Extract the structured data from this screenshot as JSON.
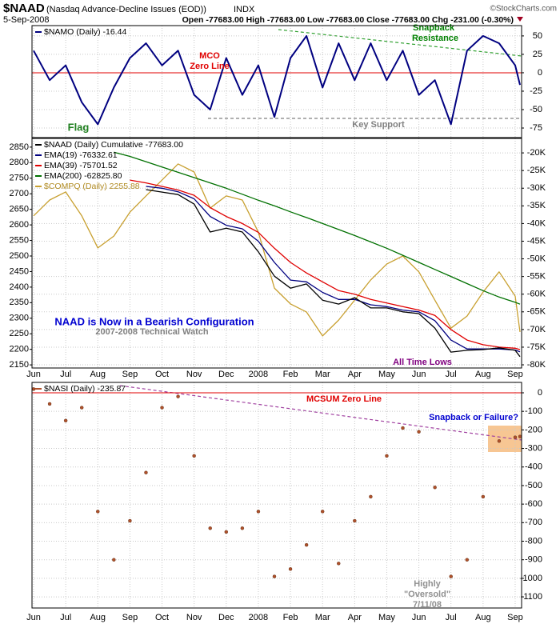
{
  "header": {
    "symbol": "$NAAD",
    "description": "(Nasdaq Advance-Decline Issues (EOD))",
    "exchange": "INDX",
    "date": "5-Sep-2008",
    "quote": "Open -77683.00  High -77683.00  Low -77683.00  Close -77683.00  Chg -231.00 (-0.30%)",
    "copyright": "©StockCharts.com"
  },
  "chart_data": [
    {
      "type": "line",
      "x": [
        0,
        0.5,
        1,
        1.5,
        2,
        2.5,
        3,
        3.5,
        4,
        4.5,
        5,
        5.5,
        6,
        6.5,
        7,
        7.5,
        8,
        8.5,
        9,
        9.5,
        10,
        10.5,
        11,
        11.5,
        12,
        12.5,
        13,
        13.5,
        14,
        14.5,
        15,
        15.15
      ],
      "xlim": [
        -0.05,
        15.2
      ],
      "ylim": [
        -88,
        64
      ],
      "yticks": [
        50,
        25,
        0,
        -25,
        -50,
        -75
      ],
      "grid": true,
      "series": [
        {
          "name": "$NAMO (Daily) -16.44",
          "color": "#000080",
          "values": [
            30,
            -10,
            10,
            -40,
            -70,
            -20,
            20,
            40,
            10,
            30,
            -30,
            -50,
            20,
            -30,
            10,
            -60,
            20,
            50,
            -20,
            40,
            -10,
            40,
            -10,
            30,
            -30,
            -10,
            -70,
            30,
            50,
            40,
            10,
            -16.44
          ]
        }
      ],
      "annotations": [
        "MCO",
        "Zero Line",
        "Snapback",
        "Resistance",
        "Flag",
        "Key Support"
      ]
    },
    {
      "type": "line",
      "x": [
        0,
        0.5,
        1,
        1.5,
        2,
        2.5,
        3,
        3.5,
        4,
        4.5,
        5,
        5.5,
        6,
        6.5,
        7,
        7.5,
        8,
        8.5,
        9,
        9.5,
        10,
        10.5,
        11,
        11.5,
        12,
        12.5,
        13,
        13.5,
        14,
        14.5,
        15,
        15.15
      ],
      "xlim": [
        -0.05,
        15.2
      ],
      "xticks": [
        {
          "value": 0,
          "label": "Jun"
        },
        {
          "value": 1,
          "label": "Jul"
        },
        {
          "value": 2,
          "label": "Aug"
        },
        {
          "value": 3,
          "label": "Sep"
        },
        {
          "value": 4,
          "label": "Oct"
        },
        {
          "value": 5,
          "label": "Nov"
        },
        {
          "value": 6,
          "label": "Dec"
        },
        {
          "value": 7,
          "label": "2008"
        },
        {
          "value": 8,
          "label": "Feb"
        },
        {
          "value": 9,
          "label": "Mar"
        },
        {
          "value": 10,
          "label": "Apr"
        },
        {
          "value": 11,
          "label": "May"
        },
        {
          "value": 12,
          "label": "Jun"
        },
        {
          "value": 13,
          "label": "Jul"
        },
        {
          "value": 14,
          "label": "Aug"
        },
        {
          "value": 15,
          "label": "Sep"
        }
      ],
      "ylim": [
        2140,
        2878
      ],
      "yticks": [
        2150,
        2200,
        2250,
        2300,
        2350,
        2400,
        2450,
        2500,
        2550,
        2600,
        2650,
        2700,
        2750,
        2800,
        2850
      ],
      "y2lim": [
        -80900,
        -15900
      ],
      "y2ticks": [
        {
          "value": -20000,
          "label": "-20K"
        },
        {
          "value": -25000,
          "label": "-25K"
        },
        {
          "value": -30000,
          "label": "-30K"
        },
        {
          "value": -35000,
          "label": "-35K"
        },
        {
          "value": -40000,
          "label": "-40K"
        },
        {
          "value": -45000,
          "label": "-45K"
        },
        {
          "value": -50000,
          "label": "-50K"
        },
        {
          "value": -55000,
          "label": "-55K"
        },
        {
          "value": -60000,
          "label": "-60K"
        },
        {
          "value": -65000,
          "label": "-65K"
        },
        {
          "value": -70000,
          "label": "-70K"
        },
        {
          "value": -75000,
          "label": "-75K"
        },
        {
          "value": -80000,
          "label": "-80K"
        }
      ],
      "grid": true,
      "series": [
        {
          "name": "$COMPQ (Daily) 2255.88",
          "color": "#c8a030",
          "values": [
            2629,
            2680,
            2706,
            2629,
            2526,
            2564,
            2641,
            2693,
            2744,
            2796,
            2770,
            2654,
            2693,
            2680,
            2577,
            2397,
            2346,
            2320,
            2243,
            2294,
            2358,
            2423,
            2474,
            2500,
            2449,
            2358,
            2268,
            2307,
            2384,
            2449,
            2371,
            2255.88
          ]
        },
        {
          "name": "EMA(200) -62825.80",
          "color": "#007000",
          "axis": "y2",
          "values": [
            null,
            null,
            null,
            null,
            null,
            -19800,
            -21000,
            -22500,
            -24000,
            -25500,
            -27000,
            -28500,
            -30000,
            -31700,
            -33400,
            -35000,
            -36700,
            -38300,
            -40000,
            -41700,
            -43400,
            -45200,
            -47000,
            -49000,
            -51000,
            -53000,
            -55000,
            -57000,
            -59000,
            -60800,
            -62300,
            -62825.8
          ]
        },
        {
          "name": "EMA(39) -75701.52",
          "color": "#e00000",
          "axis": "y2",
          "values": [
            null,
            null,
            null,
            null,
            null,
            null,
            -27700,
            -28500,
            -29500,
            -30500,
            -32000,
            -35500,
            -38000,
            -40000,
            -42500,
            -47000,
            -51000,
            -54000,
            -56500,
            -59000,
            -60000,
            -61500,
            -62500,
            -63500,
            -64500,
            -66000,
            -70000,
            -73000,
            -74300,
            -75000,
            -75300,
            -75701.52
          ]
        },
        {
          "name": "EMA(19) -76332.61",
          "color": "#000080",
          "axis": "y2",
          "values": [
            null,
            null,
            null,
            null,
            null,
            null,
            null,
            -29500,
            -30000,
            -31000,
            -33000,
            -38000,
            -40500,
            -41500,
            -45000,
            -51000,
            -56000,
            -56500,
            -59500,
            -61500,
            -61500,
            -63000,
            -63500,
            -64500,
            -65000,
            -67500,
            -73000,
            -75500,
            -75500,
            -75500,
            -75800,
            -76332.61
          ]
        },
        {
          "name": "$NAAD (Daily) Cumulative -77683.00",
          "color": "#000000",
          "axis": "y2",
          "values": [
            null,
            null,
            null,
            null,
            null,
            null,
            null,
            -30400,
            -31100,
            -31800,
            -34500,
            -42400,
            -41300,
            -42400,
            -48000,
            -54900,
            -58300,
            -57100,
            -61700,
            -62800,
            -61000,
            -63900,
            -63900,
            -65000,
            -65500,
            -69600,
            -76400,
            -75900,
            -75700,
            -75200,
            -75900,
            -77683
          ]
        }
      ],
      "annotations": [
        "NAAD is Now in a Bearish Configuration",
        "2007-2008 Technical Watch",
        "All Time Lows"
      ]
    },
    {
      "type": "scatter",
      "x": [
        0,
        0.5,
        1,
        1.5,
        2,
        2.5,
        3,
        3.5,
        4,
        4.5,
        5,
        5.5,
        6,
        6.5,
        7,
        7.5,
        8,
        8.5,
        9,
        9.5,
        10,
        10.5,
        11,
        11.5,
        12,
        12.5,
        13,
        13.5,
        14,
        14.5,
        15,
        15.15
      ],
      "xlim": [
        -0.05,
        15.2
      ],
      "xticks": [
        {
          "value": 0,
          "label": "Jun"
        },
        {
          "value": 1,
          "label": "Jul"
        },
        {
          "value": 2,
          "label": "Aug"
        },
        {
          "value": 3,
          "label": "Sep"
        },
        {
          "value": 4,
          "label": "Oct"
        },
        {
          "value": 5,
          "label": "Nov"
        },
        {
          "value": 6,
          "label": "Dec"
        },
        {
          "value": 7,
          "label": "2008"
        },
        {
          "value": 8,
          "label": "Feb"
        },
        {
          "value": 9,
          "label": "Mar"
        },
        {
          "value": 10,
          "label": "Apr"
        },
        {
          "value": 11,
          "label": "May"
        },
        {
          "value": 12,
          "label": "Jun"
        },
        {
          "value": 13,
          "label": "Jul"
        },
        {
          "value": 14,
          "label": "Aug"
        },
        {
          "value": 15,
          "label": "Sep"
        }
      ],
      "ylim": [
        -1160,
        56
      ],
      "yticks": [
        0,
        -100,
        -200,
        -300,
        -400,
        -500,
        -600,
        -700,
        -800,
        -900,
        -1000,
        -1100
      ],
      "grid": true,
      "series": [
        {
          "name": "$NASI (Daily) -235.87",
          "color": "#b0502a",
          "values": [
            20,
            -60,
            -150,
            -80,
            -640,
            -900,
            -690,
            -430,
            -80,
            -20,
            -340,
            -730,
            -750,
            -730,
            -640,
            -990,
            -950,
            -820,
            -640,
            -920,
            -690,
            -560,
            -340,
            -190,
            -210,
            -510,
            -990,
            -900,
            -560,
            -260,
            -240,
            -235.87
          ]
        }
      ],
      "annotations": [
        "MCSUM Zero Line",
        "Snapback or Failure?",
        "Highly",
        "\"Oversold\"",
        "7/11/08"
      ]
    }
  ]
}
